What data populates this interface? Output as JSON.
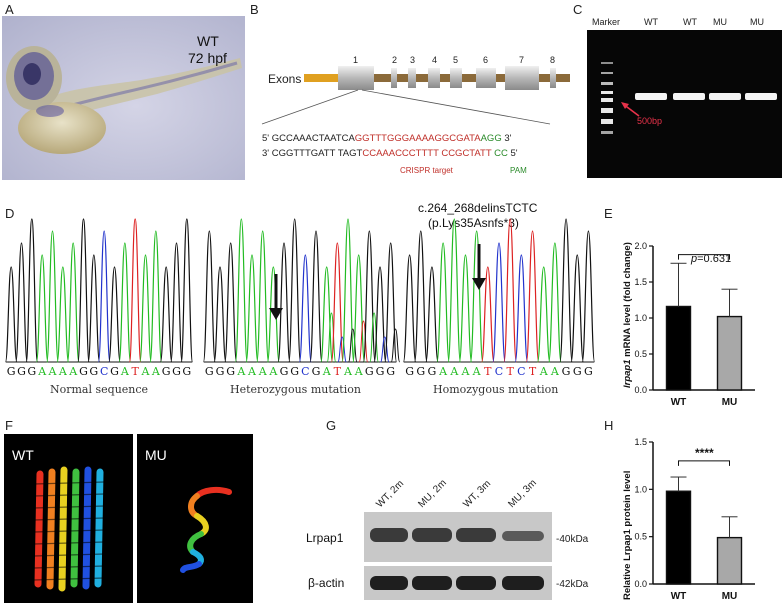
{
  "panel_labels": {
    "a": "A",
    "b": "B",
    "c": "C",
    "d": "D",
    "e": "E",
    "f": "F",
    "g": "G",
    "h": "H"
  },
  "panel_a": {
    "line1": "WT",
    "line2": "72 hpf"
  },
  "panel_b": {
    "exons_label": "Exons",
    "exon_numbers": [
      "1",
      "2",
      "3",
      "4",
      "5",
      "6",
      "7",
      "8"
    ],
    "seq_top": {
      "prefix": "5' GCCAAACTAATCA",
      "target": "GGTTTGGGAAAAGGCGATA",
      "pam": "AGG",
      "suffix": " 3'"
    },
    "seq_bottom": {
      "prefix": "3' CGGTTTGATT TAGT",
      "target": "CCAAACCCTTTT CCGCTATT",
      "pam": " CC",
      "suffix": " 5'"
    },
    "crispr_label": "CRISPR target",
    "pam_label": "PAM"
  },
  "panel_c": {
    "lanes": [
      "Marker",
      "WT",
      "WT",
      "MU",
      "MU"
    ],
    "marker_label": "500bp"
  },
  "panel_d": {
    "mutation_title_1": "c.264_268delinsTCTC",
    "mutation_title_2": "(p.Lys35Asnfs*3)",
    "seq1": "GGGAAAAGGCGATAAGGG",
    "seq2": "GGGAAAAGGCGATAAGGG",
    "seq3": "GGGAAAATCTCTAAGGG",
    "cap1": "Normal sequence",
    "cap2": "Heterozygous mutation",
    "cap3": "Homozygous mutation",
    "base_colors": {
      "A": "#22bb22",
      "G": "#111111",
      "C": "#2233cc",
      "T": "#dd2222"
    }
  },
  "panel_e": {
    "chart_data": {
      "type": "bar",
      "categories": [
        "WT",
        "MU"
      ],
      "values": [
        1.16,
        1.02
      ],
      "errors": [
        0.6,
        0.38
      ],
      "ylabel_italic": "lrpap1",
      "ylabel_rest": " mRNA level (fold change)",
      "ylim": [
        0,
        2.0
      ],
      "yticks": [
        "0.0",
        "0.5",
        "1.0",
        "1.5",
        "2.0"
      ],
      "p_prefix": "p",
      "p_rest": "=0.631",
      "colors": [
        "#000000",
        "#a8a8a8"
      ]
    }
  },
  "panel_f": {
    "left_label": "WT",
    "right_label": "MU"
  },
  "panel_g": {
    "lanes": [
      "WT, 2m",
      "MU, 2m",
      "WT, 3m",
      "MU, 3m"
    ],
    "row1": "Lrpap1",
    "row2": "β-actin",
    "kda1": "-40kDa",
    "kda2": "-42kDa"
  },
  "panel_h": {
    "chart_data": {
      "type": "bar",
      "categories": [
        "WT",
        "MU"
      ],
      "values": [
        0.98,
        0.49
      ],
      "errors": [
        0.15,
        0.22
      ],
      "ylabel": "Relative Lrpap1 protein level",
      "ylim": [
        0,
        1.5
      ],
      "yticks": [
        "0.0",
        "0.5",
        "1.0",
        "1.5"
      ],
      "significance": "****",
      "colors": [
        "#000000",
        "#a8a8a8"
      ]
    }
  }
}
